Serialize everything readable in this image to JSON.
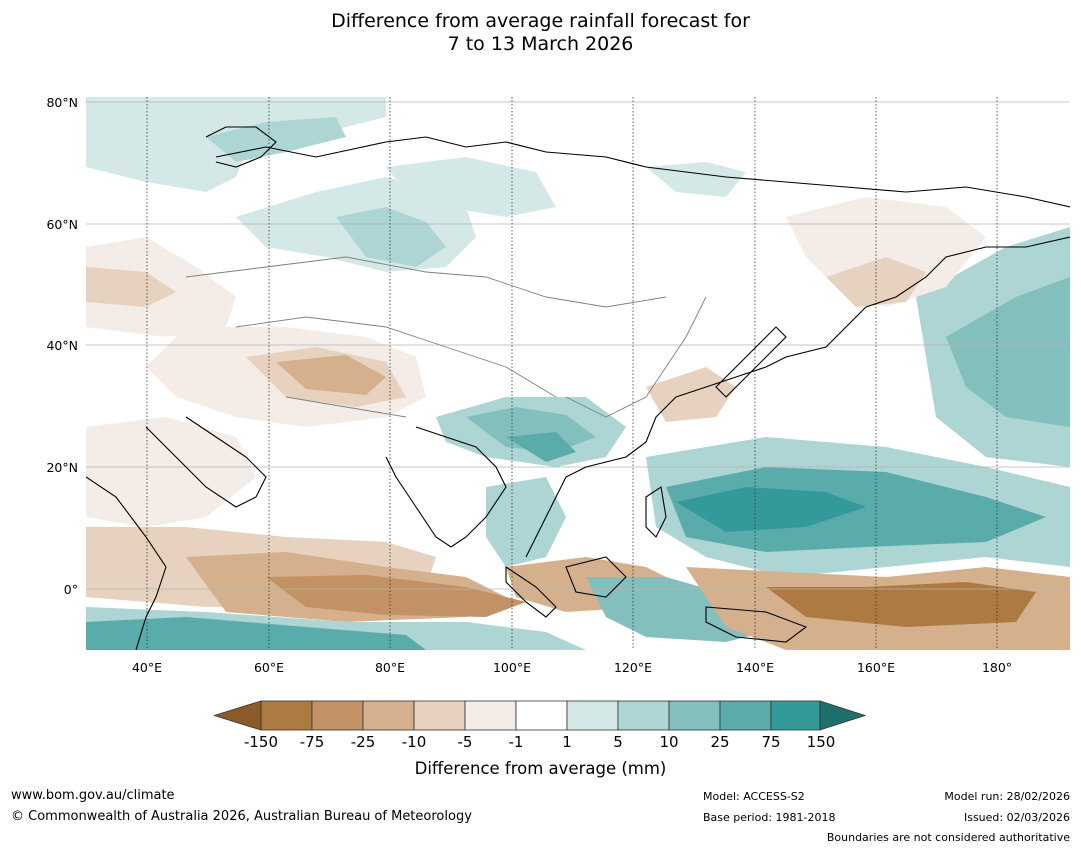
{
  "title": {
    "line1": "Difference from average rainfall forecast for",
    "line2": "7 to 13 March 2026"
  },
  "map": {
    "region": "Asia and Western Pacific",
    "latitude_labels": [
      "80°N",
      "60°N",
      "40°N",
      "20°N",
      "0°"
    ],
    "longitude_labels": [
      "40°E",
      "60°E",
      "80°E",
      "100°E",
      "120°E",
      "140°E",
      "160°E",
      "180°"
    ],
    "extent": {
      "lon": [
        30,
        192
      ],
      "lat": [
        -10,
        81
      ]
    }
  },
  "legend": {
    "title": "Difference from average (mm)",
    "ticks": [
      "-150",
      "-75",
      "-25",
      "-10",
      "-5",
      "-1",
      "1",
      "5",
      "10",
      "25",
      "75",
      "150"
    ],
    "colors": [
      "#8c5a2b",
      "#ad7a42",
      "#c29266",
      "#d4b08d",
      "#e6d2bf",
      "#f4ece6",
      "#ffffff",
      "#d4e8e7",
      "#acd5d4",
      "#82bfbd",
      "#5aacaa",
      "#33999a",
      "#1f706d"
    ]
  },
  "footer": {
    "website": "www.bom.gov.au/climate",
    "copyright": "© Commonwealth of Australia 2026, Australian Bureau of Meteorology",
    "model": "Model: ACCESS-S2",
    "base_period": "Base period: 1981-2018",
    "model_run": "Model run: 28/02/2026",
    "issued": "Issued: 02/03/2026",
    "disclaimer": "Boundaries are not considered authoritative"
  }
}
